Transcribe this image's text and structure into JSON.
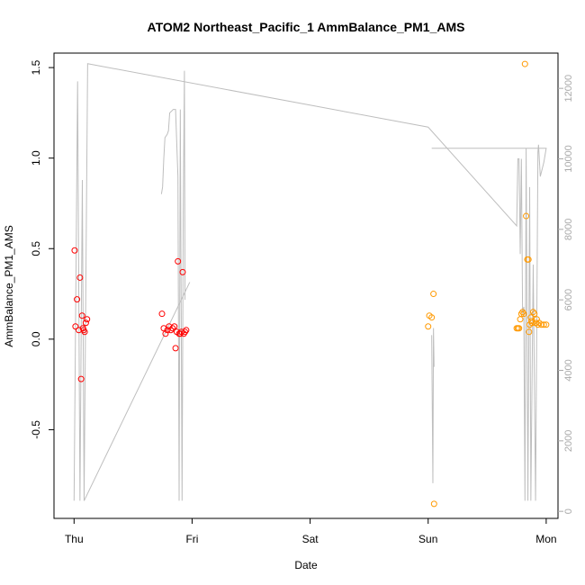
{
  "chart_data": {
    "type": "scatter",
    "title": "ATOM2 Northeast_Pacific_1 AmmBalance_PM1_AMS",
    "xlabel": "Date",
    "ylabel": "AmmBalance_PM1_AMS",
    "x_ticks": [
      {
        "label": "Thu",
        "day": 0
      },
      {
        "label": "Fri",
        "day": 1
      },
      {
        "label": "Sat",
        "day": 2
      },
      {
        "label": "Sun",
        "day": 3
      },
      {
        "label": "Mon",
        "day": 4
      }
    ],
    "xlim_days": [
      -0.17,
      4.1
    ],
    "ylim": [
      -0.99,
      1.58
    ],
    "y_ticks": [
      -0.5,
      0.0,
      0.5,
      1.0,
      1.5
    ],
    "y2lim": [
      -200,
      13000
    ],
    "y2_ticks": [
      0,
      2000,
      4000,
      6000,
      8000,
      10000,
      12000
    ],
    "grid": false,
    "colors": {
      "series_1": "#ff0000",
      "series_2": "#ff9900",
      "secondary_line": "#bebebe",
      "right_axis": "#aaaaaa"
    },
    "series": [
      {
        "color": "#ff0000",
        "points": [
          {
            "day": 0.005,
            "y": 0.49
          },
          {
            "day": 0.012,
            "y": 0.07
          },
          {
            "day": 0.025,
            "y": 0.22
          },
          {
            "day": 0.04,
            "y": 0.05
          },
          {
            "day": 0.05,
            "y": 0.34
          },
          {
            "day": 0.06,
            "y": -0.22
          },
          {
            "day": 0.068,
            "y": 0.13
          },
          {
            "day": 0.075,
            "y": 0.06
          },
          {
            "day": 0.082,
            "y": 0.05
          },
          {
            "day": 0.09,
            "y": 0.04
          },
          {
            "day": 0.1,
            "y": 0.09
          },
          {
            "day": 0.11,
            "y": 0.11
          },
          {
            "day": 0.745,
            "y": 0.14
          },
          {
            "day": 0.76,
            "y": 0.06
          },
          {
            "day": 0.775,
            "y": 0.03
          },
          {
            "day": 0.79,
            "y": 0.05
          },
          {
            "day": 0.805,
            "y": 0.07
          },
          {
            "day": 0.82,
            "y": 0.05
          },
          {
            "day": 0.835,
            "y": 0.06
          },
          {
            "day": 0.85,
            "y": 0.07
          },
          {
            "day": 0.86,
            "y": -0.05
          },
          {
            "day": 0.87,
            "y": 0.04
          },
          {
            "day": 0.88,
            "y": 0.43
          },
          {
            "day": 0.89,
            "y": 0.03
          },
          {
            "day": 0.9,
            "y": 0.03
          },
          {
            "day": 0.91,
            "y": 0.04
          },
          {
            "day": 0.92,
            "y": 0.37
          },
          {
            "day": 0.93,
            "y": 0.03
          },
          {
            "day": 0.94,
            "y": 0.04
          },
          {
            "day": 0.95,
            "y": 0.05
          }
        ]
      },
      {
        "color": "#ff9900",
        "points": [
          {
            "day": 3.0,
            "y": 0.07
          },
          {
            "day": 3.01,
            "y": 0.13
          },
          {
            "day": 3.03,
            "y": 0.12
          },
          {
            "day": 3.045,
            "y": 0.25
          },
          {
            "day": 3.05,
            "y": -0.91
          },
          {
            "day": 3.75,
            "y": 0.06
          },
          {
            "day": 3.76,
            "y": 0.06
          },
          {
            "day": 3.77,
            "y": 0.06
          },
          {
            "day": 3.78,
            "y": 0.11
          },
          {
            "day": 3.79,
            "y": 0.14
          },
          {
            "day": 3.8,
            "y": 0.15
          },
          {
            "day": 3.81,
            "y": 0.14
          },
          {
            "day": 3.82,
            "y": 1.52
          },
          {
            "day": 3.83,
            "y": 0.68
          },
          {
            "day": 3.84,
            "y": 0.44
          },
          {
            "day": 3.85,
            "y": 0.44
          },
          {
            "day": 3.855,
            "y": 0.04
          },
          {
            "day": 3.86,
            "y": 0.08
          },
          {
            "day": 3.87,
            "y": 0.12
          },
          {
            "day": 3.875,
            "y": 0.1
          },
          {
            "day": 3.88,
            "y": 0.09
          },
          {
            "day": 3.89,
            "y": 0.15
          },
          {
            "day": 3.9,
            "y": 0.14
          },
          {
            "day": 3.91,
            "y": 0.09
          },
          {
            "day": 3.92,
            "y": 0.11
          },
          {
            "day": 3.93,
            "y": 0.08
          },
          {
            "day": 3.94,
            "y": 0.09
          },
          {
            "day": 3.96,
            "y": 0.08
          },
          {
            "day": 3.98,
            "y": 0.08
          },
          {
            "day": 4.0,
            "y": 0.08
          }
        ]
      },
      {
        "type": "line",
        "axis": "right",
        "color": "#bebebe",
        "points": [
          {
            "day": 0.0,
            "y2": 300
          },
          {
            "day": 0.03,
            "y2": 12200
          },
          {
            "day": 0.05,
            "y2": 300
          },
          {
            "day": 0.07,
            "y2": 9400
          },
          {
            "day": 0.085,
            "y2": 300
          },
          {
            "day": 0.115,
            "y2": 12700
          },
          {
            "day": 3.0,
            "y2": 10900
          },
          {
            "day": 3.75,
            "y2": 8100
          },
          {
            "day": 3.76,
            "y2": 10000
          },
          {
            "day": 3.77,
            "y2": 10000
          },
          {
            "day": 3.78,
            "y2": 7300
          },
          {
            "day": 3.79,
            "y2": 10000
          },
          {
            "day": 3.8,
            "y2": 5600
          },
          {
            "day": 3.81,
            "y2": 5800
          },
          {
            "day": 3.82,
            "y2": 300
          },
          {
            "day": 3.83,
            "y2": 10300
          },
          {
            "day": 3.845,
            "y2": 300
          },
          {
            "day": 3.86,
            "y2": 9200
          },
          {
            "day": 3.87,
            "y2": 300
          },
          {
            "day": 3.89,
            "y2": 7000
          },
          {
            "day": 3.91,
            "y2": 300
          },
          {
            "day": 3.93,
            "y2": 10200
          },
          {
            "day": 3.935,
            "y2": 10400
          },
          {
            "day": 3.95,
            "y2": 9500
          },
          {
            "day": 3.98,
            "y2": 9900
          },
          {
            "day": 4.0,
            "y2": 10300
          },
          {
            "day": 3.03,
            "y2": 10300
          }
        ]
      },
      {
        "type": "line",
        "axis": "right",
        "color": "#bebebe",
        "points": [
          {
            "day": 0.085,
            "y2": 300
          },
          {
            "day": 0.98,
            "y2": 6500
          }
        ]
      },
      {
        "type": "line",
        "axis": "right",
        "color": "#bebebe",
        "points": [
          {
            "day": 0.74,
            "y2": 9000
          },
          {
            "day": 0.75,
            "y2": 9200
          },
          {
            "day": 0.76,
            "y2": 10000
          },
          {
            "day": 0.77,
            "y2": 10600
          },
          {
            "day": 0.79,
            "y2": 10700
          },
          {
            "day": 0.8,
            "y2": 10800
          },
          {
            "day": 0.81,
            "y2": 11300
          },
          {
            "day": 0.84,
            "y2": 11400
          },
          {
            "day": 0.86,
            "y2": 11400
          },
          {
            "day": 0.88,
            "y2": 9500
          },
          {
            "day": 0.89,
            "y2": 300
          },
          {
            "day": 0.9,
            "y2": 11400
          },
          {
            "day": 0.915,
            "y2": 300
          },
          {
            "day": 0.925,
            "y2": 8500
          },
          {
            "day": 0.935,
            "y2": 12500
          },
          {
            "day": 0.94,
            "y2": 6000
          }
        ]
      },
      {
        "type": "line",
        "axis": "right",
        "color": "#bebebe",
        "points": [
          {
            "day": 3.03,
            "y2": 5000
          },
          {
            "day": 3.04,
            "y2": 800
          },
          {
            "day": 3.045,
            "y2": 5200
          },
          {
            "day": 3.05,
            "y2": 4100
          }
        ]
      }
    ]
  }
}
